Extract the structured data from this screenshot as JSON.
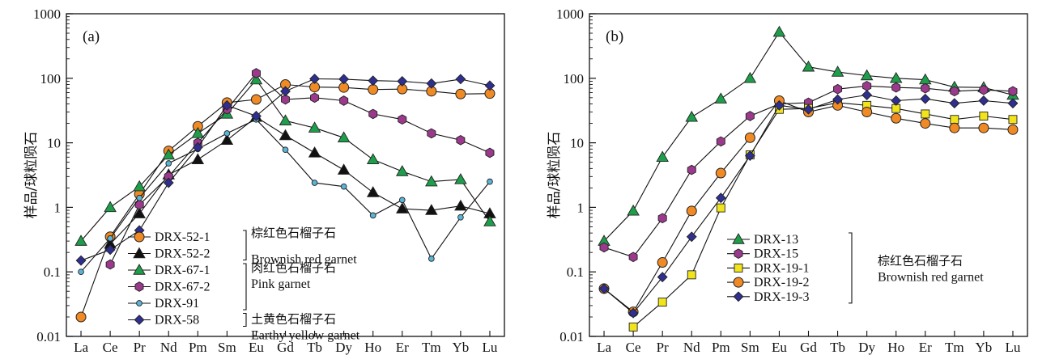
{
  "chart_data": [
    {
      "type": "line",
      "panel_label": "(a)",
      "ylabel": "样品/球粒陨石",
      "xlabel": "",
      "y_scale": "log",
      "ylim": [
        0.01,
        1000
      ],
      "y_ticks": [
        "0.01",
        "0.1",
        "1",
        "10",
        "100",
        "1000"
      ],
      "categories": [
        "La",
        "Ce",
        "Pr",
        "Nd",
        "Pm",
        "Sm",
        "Eu",
        "Gd",
        "Tb",
        "Dy",
        "Ho",
        "Er",
        "Tm",
        "Yb",
        "Lu"
      ],
      "legend_position": "bottom-center",
      "series": [
        {
          "name": "DRX-52-1",
          "marker": "circle-large",
          "color": "#f08a24",
          "values": [
            0.02,
            0.35,
            1.6,
            7.5,
            18,
            42,
            47,
            80,
            73,
            72,
            67,
            68,
            63,
            57,
            58
          ]
        },
        {
          "name": "DRX-52-2",
          "marker": "triangle",
          "color": "#111111",
          "values": [
            null,
            0.27,
            0.8,
            3.2,
            5.5,
            11,
            25,
            13,
            7,
            3.8,
            1.7,
            0.95,
            0.9,
            1.05,
            0.8
          ]
        },
        {
          "name": "DRX-67-1",
          "marker": "triangle",
          "color": "#1e9e4a",
          "values": [
            0.3,
            1.0,
            2.1,
            6.5,
            14,
            28,
            95,
            22,
            17,
            12,
            5.5,
            3.6,
            2.5,
            2.7,
            0.6
          ]
        },
        {
          "name": "DRX-67-2",
          "marker": "hexagon",
          "color": "#9b3a8c",
          "values": [
            null,
            0.13,
            1.1,
            3.0,
            10,
            33,
            120,
            47,
            50,
            45,
            28,
            23,
            14,
            11,
            7
          ]
        },
        {
          "name": "DRX-91",
          "marker": "circle-small",
          "color": "#5ab4d6",
          "values": [
            0.1,
            0.33,
            1.4,
            4.8,
            8,
            14,
            23,
            7.8,
            2.4,
            2.1,
            0.75,
            1.3,
            0.16,
            0.7,
            2.5
          ]
        },
        {
          "name": "DRX-58",
          "marker": "diamond",
          "color": "#2e2f8f",
          "values": [
            0.15,
            0.22,
            0.44,
            2.4,
            8.5,
            38,
            26,
            63,
            98,
            97,
            92,
            90,
            83,
            97,
            77
          ]
        }
      ],
      "groups": [
        {
          "zh": "棕红色石榴子石",
          "en": "Brownish red garnet",
          "members": [
            "DRX-52-1",
            "DRX-52-2"
          ]
        },
        {
          "zh": "肉红色石榴子石",
          "en": "Pink garnet",
          "members": [
            "DRX-67-1",
            "DRX-67-2",
            "DRX-91"
          ]
        },
        {
          "zh": "土黄色石榴子石",
          "en": "Earthy yellow garnet",
          "members": [
            "DRX-58"
          ]
        }
      ]
    },
    {
      "type": "line",
      "panel_label": "(b)",
      "ylabel": "样品/球粒陨石",
      "xlabel": "",
      "y_scale": "log",
      "ylim": [
        0.01,
        1000
      ],
      "y_ticks": [
        "0.01",
        "0.1",
        "1",
        "10",
        "100",
        "1000"
      ],
      "categories": [
        "La",
        "Ce",
        "Pr",
        "Nd",
        "Pm",
        "Sm",
        "Eu",
        "Gd",
        "Tb",
        "Dy",
        "Ho",
        "Er",
        "Tm",
        "Yb",
        "Lu"
      ],
      "legend_position": "bottom-center",
      "series": [
        {
          "name": "DRX-13",
          "marker": "triangle",
          "color": "#1e9e4a",
          "values": [
            0.3,
            0.88,
            6,
            25,
            48,
            100,
            520,
            150,
            125,
            110,
            100,
            95,
            73,
            72,
            55
          ]
        },
        {
          "name": "DRX-15",
          "marker": "hexagon",
          "color": "#9b3a8c",
          "values": [
            0.24,
            0.17,
            0.68,
            3.8,
            10.5,
            26,
            40,
            42,
            68,
            76,
            72,
            70,
            63,
            66,
            63
          ]
        },
        {
          "name": "DRX-19-1",
          "marker": "square",
          "color": "#f2e41a",
          "values": [
            null,
            0.014,
            0.034,
            0.09,
            0.98,
            6.5,
            33,
            34,
            42,
            38,
            34,
            28,
            23,
            26,
            23
          ]
        },
        {
          "name": "DRX-19-2",
          "marker": "circle-large",
          "color": "#f08a24",
          "values": [
            0.055,
            0.024,
            0.14,
            0.88,
            3.4,
            12,
            45,
            30,
            38,
            30,
            24,
            20,
            17,
            17,
            16
          ]
        },
        {
          "name": "DRX-19-3",
          "marker": "diamond",
          "color": "#2e2f8f",
          "values": [
            0.055,
            0.023,
            0.083,
            0.35,
            1.4,
            6.3,
            38,
            33,
            47,
            55,
            45,
            48,
            41,
            45,
            41
          ]
        }
      ],
      "groups": [
        {
          "zh": "棕红色石榴子石",
          "en": "Brownish red garnet",
          "members": [
            "DRX-13",
            "DRX-15",
            "DRX-19-1",
            "DRX-19-2",
            "DRX-19-3"
          ]
        }
      ]
    }
  ]
}
